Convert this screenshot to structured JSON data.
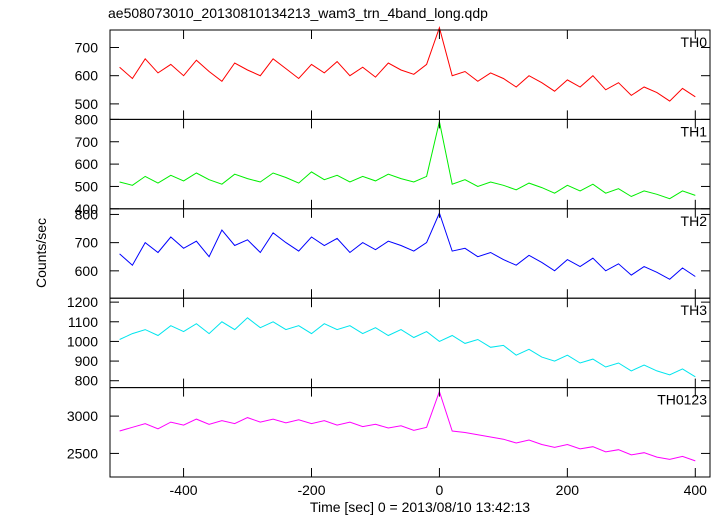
{
  "chart_data": {
    "type": "line",
    "title": "ae508073010_20130810134213_wam3_trn_4band_long.qdp",
    "xlabel": "Time [sec] 0 = 2013/08/10 13:42:13",
    "ylabel": "Counts/sec",
    "xlim": [
      -515,
      423
    ],
    "xticks": [
      -400,
      -200,
      0,
      200,
      400
    ],
    "x": [
      -500,
      -480,
      -460,
      -440,
      -420,
      -400,
      -380,
      -360,
      -340,
      -320,
      -300,
      -280,
      -260,
      -240,
      -220,
      -200,
      -180,
      -160,
      -140,
      -120,
      -100,
      -80,
      -60,
      -40,
      -20,
      0,
      20,
      40,
      60,
      80,
      100,
      120,
      140,
      160,
      180,
      200,
      220,
      240,
      260,
      280,
      300,
      320,
      340,
      360,
      380,
      400
    ],
    "series": [
      {
        "name": "TH0",
        "color": "#ff0000",
        "ylim": [
          445,
          762
        ],
        "yticks": [
          500,
          600,
          700
        ],
        "values": [
          630,
          590,
          660,
          610,
          640,
          600,
          655,
          615,
          580,
          645,
          620,
          600,
          660,
          625,
          590,
          640,
          610,
          650,
          600,
          630,
          595,
          645,
          620,
          605,
          640,
          770,
          600,
          615,
          580,
          610,
          590,
          560,
          600,
          575,
          545,
          585,
          560,
          600,
          550,
          575,
          530,
          560,
          540,
          510,
          555,
          525
        ]
      },
      {
        "name": "TH1",
        "color": "#00ee00",
        "ylim": [
          400,
          800
        ],
        "yticks": [
          400,
          500,
          600,
          700,
          800
        ],
        "values": [
          520,
          505,
          545,
          515,
          550,
          525,
          560,
          530,
          510,
          555,
          535,
          520,
          560,
          540,
          515,
          565,
          530,
          550,
          520,
          545,
          525,
          555,
          535,
          520,
          545,
          790,
          510,
          530,
          500,
          520,
          505,
          485,
          515,
          495,
          470,
          505,
          480,
          510,
          470,
          490,
          455,
          480,
          465,
          445,
          480,
          460
        ]
      },
      {
        "name": "TH2",
        "color": "#0000ff",
        "ylim": [
          503,
          820
        ],
        "yticks": [
          600,
          700,
          800
        ],
        "values": [
          660,
          620,
          700,
          665,
          720,
          680,
          705,
          650,
          745,
          690,
          710,
          665,
          735,
          700,
          670,
          720,
          690,
          715,
          665,
          700,
          675,
          705,
          690,
          670,
          700,
          805,
          670,
          680,
          650,
          665,
          640,
          620,
          655,
          630,
          600,
          640,
          615,
          645,
          600,
          625,
          585,
          615,
          595,
          570,
          610,
          580
        ]
      },
      {
        "name": "TH3",
        "color": "#00e5ee",
        "ylim": [
          765,
          1220
        ],
        "yticks": [
          800,
          900,
          1000,
          1100,
          1200
        ],
        "values": [
          1010,
          1040,
          1060,
          1030,
          1080,
          1050,
          1090,
          1040,
          1100,
          1060,
          1120,
          1070,
          1100,
          1060,
          1080,
          1040,
          1090,
          1060,
          1080,
          1040,
          1070,
          1030,
          1060,
          1020,
          1050,
          1000,
          1030,
          990,
          1010,
          970,
          980,
          930,
          960,
          920,
          900,
          930,
          890,
          910,
          870,
          890,
          850,
          880,
          850,
          830,
          860,
          820
        ]
      },
      {
        "name": "TH0123",
        "color": "#ff00ff",
        "ylim": [
          2184,
          3382
        ],
        "yticks": [
          2500,
          3000
        ],
        "values": [
          2800,
          2850,
          2900,
          2830,
          2920,
          2880,
          2960,
          2890,
          2940,
          2900,
          2980,
          2920,
          2960,
          2910,
          2950,
          2900,
          2940,
          2880,
          2920,
          2860,
          2890,
          2840,
          2870,
          2810,
          2850,
          3330,
          2800,
          2780,
          2750,
          2720,
          2690,
          2640,
          2680,
          2620,
          2580,
          2620,
          2560,
          2590,
          2520,
          2550,
          2480,
          2510,
          2450,
          2420,
          2460,
          2400
        ]
      }
    ]
  }
}
